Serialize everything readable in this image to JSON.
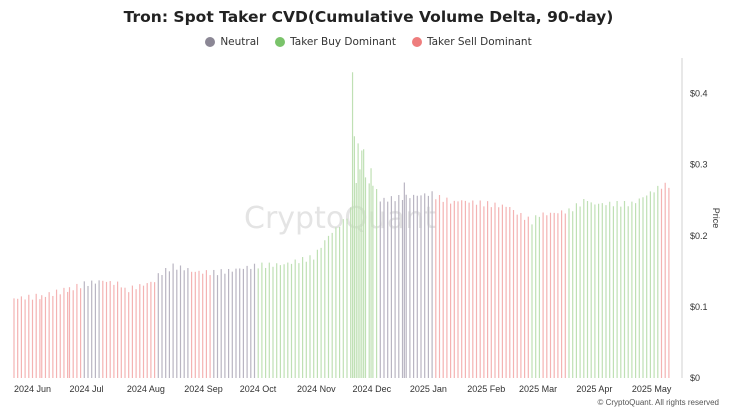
{
  "chart_data": {
    "type": "bar",
    "title": "Tron: Spot Taker CVD(Cumulative Volume Delta, 90-day)",
    "legend": [
      {
        "label": "Neutral",
        "color": "#8b8795"
      },
      {
        "label": "Taker Buy Dominant",
        "color": "#7ac36a"
      },
      {
        "label": "Taker Sell Dominant",
        "color": "#ee7d7d"
      }
    ],
    "bar_colors": {
      "neutral": "#b9b5c2",
      "buy": "#bfe0b4",
      "sell": "#f4b3b3"
    },
    "ylabel": "Price",
    "ylim": [
      0,
      0.45
    ],
    "yticks": [
      {
        "value": 0,
        "label": "$0"
      },
      {
        "value": 0.1,
        "label": "$0.1"
      },
      {
        "value": 0.2,
        "label": "$0.2"
      },
      {
        "value": 0.3,
        "label": "$0.3"
      },
      {
        "value": 0.4,
        "label": "$0.4"
      }
    ],
    "xlim": [
      0,
      360
    ],
    "xticks": [
      {
        "value": 0,
        "label": "2024 Jun"
      },
      {
        "value": 30,
        "label": "2024 Jul"
      },
      {
        "value": 61,
        "label": "2024 Aug"
      },
      {
        "value": 92,
        "label": "2024 Sep"
      },
      {
        "value": 122,
        "label": "2024 Oct"
      },
      {
        "value": 153,
        "label": "2024 Nov"
      },
      {
        "value": 183,
        "label": "2024 Dec"
      },
      {
        "value": 214,
        "label": "2025 Jan"
      },
      {
        "value": 245,
        "label": "2025 Feb"
      },
      {
        "value": 273,
        "label": "2025 Mar"
      },
      {
        "value": 304,
        "label": "2025 Apr"
      },
      {
        "value": 334,
        "label": "2025 May"
      }
    ],
    "series": [
      {
        "start": 0,
        "end": 15,
        "from": 0.112,
        "to": 0.115,
        "regime": "sell"
      },
      {
        "start": 15,
        "end": 30,
        "from": 0.115,
        "to": 0.125,
        "regime": "sell"
      },
      {
        "start": 30,
        "end": 38,
        "from": 0.125,
        "to": 0.132,
        "regime": "sell"
      },
      {
        "start": 38,
        "end": 48,
        "from": 0.132,
        "to": 0.137,
        "regime": "neutral"
      },
      {
        "start": 48,
        "end": 60,
        "from": 0.137,
        "to": 0.13,
        "regime": "sell"
      },
      {
        "start": 60,
        "end": 78,
        "from": 0.123,
        "to": 0.138,
        "regime": "sell"
      },
      {
        "start": 78,
        "end": 86,
        "from": 0.145,
        "to": 0.157,
        "regime": "neutral"
      },
      {
        "start": 86,
        "end": 96,
        "from": 0.157,
        "to": 0.152,
        "regime": "neutral"
      },
      {
        "start": 96,
        "end": 108,
        "from": 0.15,
        "to": 0.148,
        "regime": "sell"
      },
      {
        "start": 108,
        "end": 120,
        "from": 0.148,
        "to": 0.152,
        "regime": "neutral"
      },
      {
        "start": 120,
        "end": 132,
        "from": 0.153,
        "to": 0.158,
        "regime": "neutral"
      },
      {
        "start": 132,
        "end": 146,
        "from": 0.158,
        "to": 0.16,
        "regime": "buy"
      },
      {
        "start": 146,
        "end": 162,
        "from": 0.16,
        "to": 0.17,
        "regime": "buy"
      },
      {
        "start": 162,
        "end": 170,
        "from": 0.17,
        "to": 0.2,
        "regime": "buy"
      },
      {
        "start": 170,
        "end": 178,
        "from": 0.2,
        "to": 0.22,
        "regime": "buy"
      },
      {
        "start": 178,
        "end": 183,
        "from": 0.22,
        "to": 0.24,
        "regime": "buy"
      },
      {
        "start": 183,
        "end": 190,
        "from": 0.25,
        "to": 0.33,
        "regime": "buy"
      },
      {
        "start": 190,
        "end": 198,
        "from": 0.28,
        "to": 0.26,
        "regime": "buy"
      },
      {
        "start": 198,
        "end": 228,
        "from": 0.25,
        "to": 0.26,
        "regime": "neutral"
      },
      {
        "start": 228,
        "end": 240,
        "from": 0.255,
        "to": 0.245,
        "regime": "sell"
      },
      {
        "start": 240,
        "end": 270,
        "from": 0.25,
        "to": 0.24,
        "regime": "sell"
      },
      {
        "start": 270,
        "end": 280,
        "from": 0.235,
        "to": 0.22,
        "regime": "sell"
      },
      {
        "start": 280,
        "end": 286,
        "from": 0.22,
        "to": 0.235,
        "regime": "buy"
      },
      {
        "start": 286,
        "end": 300,
        "from": 0.23,
        "to": 0.235,
        "regime": "sell"
      },
      {
        "start": 300,
        "end": 312,
        "from": 0.235,
        "to": 0.255,
        "regime": "buy"
      },
      {
        "start": 312,
        "end": 334,
        "from": 0.245,
        "to": 0.245,
        "regime": "buy"
      },
      {
        "start": 334,
        "end": 350,
        "from": 0.245,
        "to": 0.27,
        "regime": "buy"
      },
      {
        "start": 350,
        "end": 356,
        "from": 0.27,
        "to": 0.272,
        "regime": "sell"
      }
    ],
    "spikes": [
      {
        "x": 183,
        "value": 0.43,
        "regime": "buy"
      },
      {
        "x": 184,
        "value": 0.34,
        "regime": "buy"
      },
      {
        "x": 186,
        "value": 0.33,
        "regime": "buy"
      },
      {
        "x": 188,
        "value": 0.32,
        "regime": "buy"
      },
      {
        "x": 193,
        "value": 0.295,
        "regime": "buy"
      },
      {
        "x": 211,
        "value": 0.275,
        "regime": "neutral"
      }
    ],
    "watermark": "CryptoQuant"
  },
  "footer": "© CryptoQuant. All rights reserved"
}
